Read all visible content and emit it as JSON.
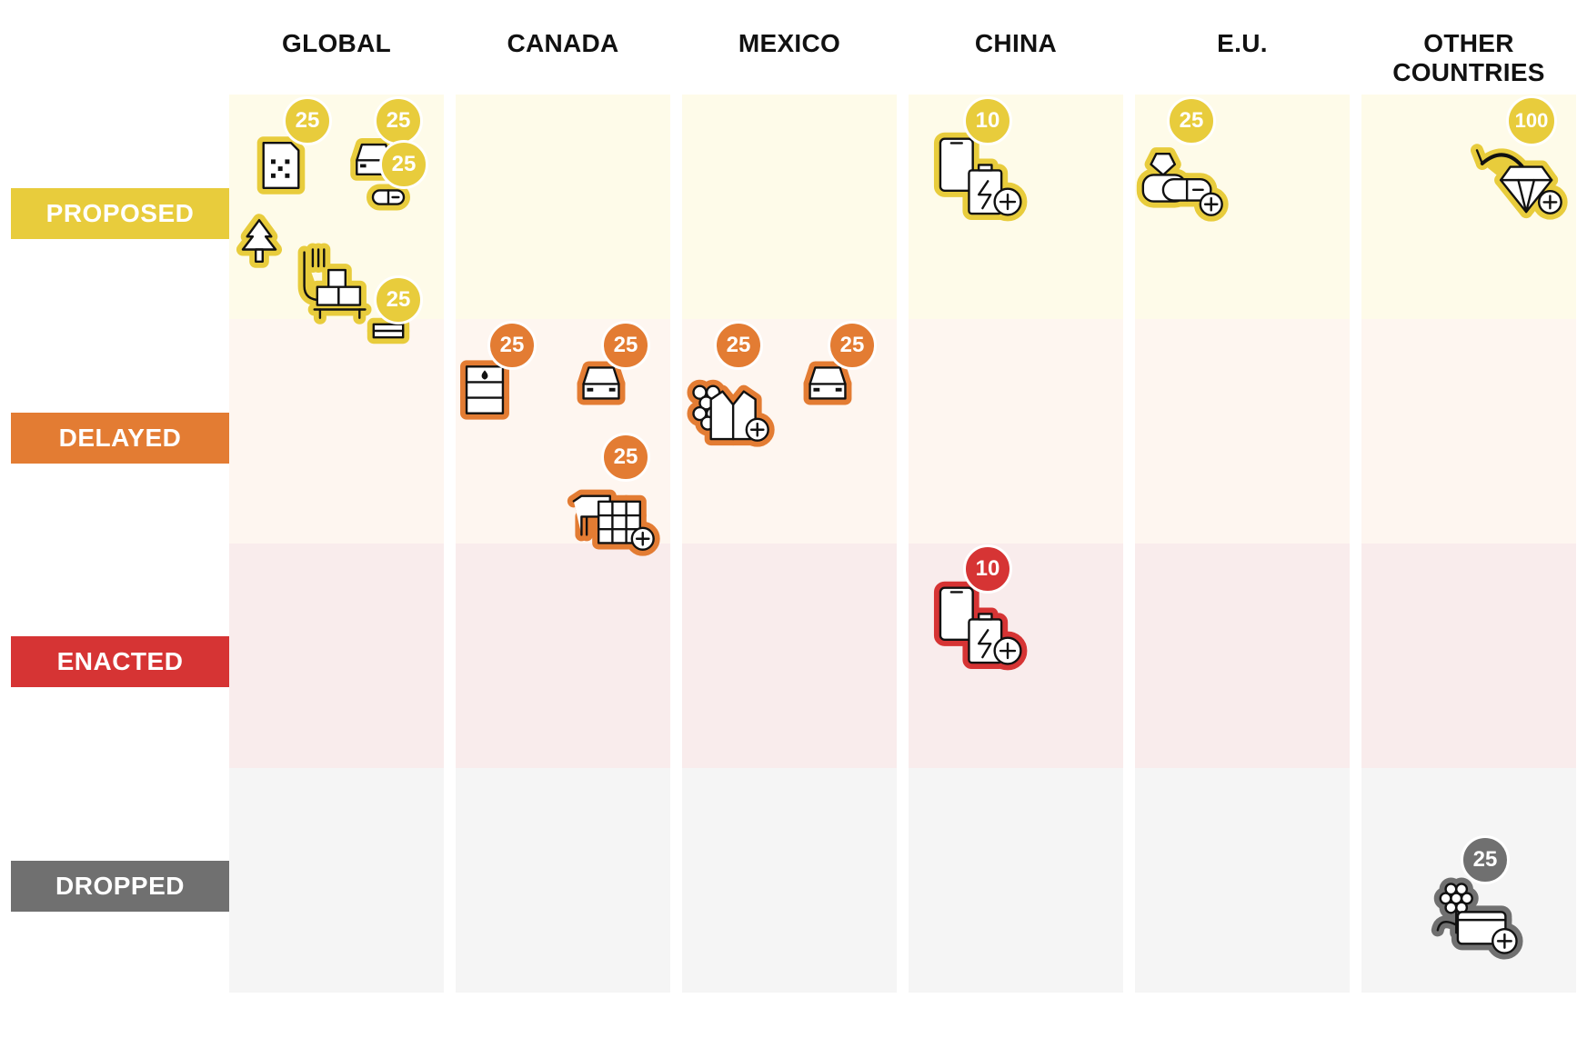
{
  "columns": [
    "GLOBAL",
    "CANADA",
    "MEXICO",
    "CHINA",
    "E.U.",
    "OTHER\nCOUNTRIES"
  ],
  "statuses": [
    {
      "label": "PROPOSED",
      "color": "#e8cc3c",
      "tint": "#fefbe9"
    },
    {
      "label": "DELAYED",
      "color": "#e37c33",
      "tint": "#fef6f0"
    },
    {
      "label": "ENACTED",
      "color": "#d63434",
      "tint": "#f9ecec"
    },
    {
      "label": "DROPPED",
      "color": "#707070",
      "tint": "#f5f5f5"
    }
  ],
  "tariffs": [
    {
      "column": "GLOBAL",
      "status": "PROPOSED",
      "rate": "25",
      "icons": [
        "chip-icon"
      ]
    },
    {
      "column": "GLOBAL",
      "status": "PROPOSED",
      "rate": "25",
      "icons": [
        "car-icon"
      ]
    },
    {
      "column": "GLOBAL",
      "status": "PROPOSED",
      "rate": "25",
      "icons": [
        "pill-icon"
      ]
    },
    {
      "column": "GLOBAL",
      "status": "PROPOSED",
      "rate": "",
      "icons": [
        "lumber-tree-icon"
      ]
    },
    {
      "column": "GLOBAL",
      "status": "PROPOSED",
      "rate": "",
      "icons": [
        "copper-wire-icon",
        "boxes-pallet-icon"
      ]
    },
    {
      "column": "GLOBAL",
      "status": "PROPOSED",
      "rate": "25",
      "icons": [
        "steel-beam-icon"
      ]
    },
    {
      "column": "CANADA",
      "status": "DELAYED",
      "rate": "25",
      "icons": [
        "oil-barrel-icon"
      ]
    },
    {
      "column": "CANADA",
      "status": "DELAYED",
      "rate": "25",
      "icons": [
        "car-icon"
      ]
    },
    {
      "column": "CANADA",
      "status": "DELAYED",
      "rate": "25",
      "icons": [
        "cow-icon",
        "solar-panel-icon",
        "plus-icon"
      ]
    },
    {
      "column": "MEXICO",
      "status": "DELAYED",
      "rate": "25",
      "icons": [
        "grapes-icon",
        "jacket-icon",
        "plus-icon"
      ]
    },
    {
      "column": "MEXICO",
      "status": "DELAYED",
      "rate": "25",
      "icons": [
        "car-icon"
      ]
    },
    {
      "column": "CHINA",
      "status": "PROPOSED",
      "rate": "10",
      "icons": [
        "phone-icon",
        "battery-icon",
        "plus-icon"
      ]
    },
    {
      "column": "CHINA",
      "status": "ENACTED",
      "rate": "10",
      "icons": [
        "phone-icon",
        "battery-icon",
        "plus-icon"
      ]
    },
    {
      "column": "E.U.",
      "status": "PROPOSED",
      "rate": "25",
      "icons": [
        "perfume-icon",
        "pill-icon",
        "plus-icon"
      ]
    },
    {
      "column": "OTHER\nCOUNTRIES",
      "status": "PROPOSED",
      "rate": "100",
      "icons": [
        "shrimp-icon",
        "diamond-icon",
        "plus-icon"
      ]
    },
    {
      "column": "OTHER\nCOUNTRIES",
      "status": "DROPPED",
      "rate": "25",
      "icons": [
        "flower-icon",
        "card-icon",
        "plus-icon"
      ]
    }
  ]
}
